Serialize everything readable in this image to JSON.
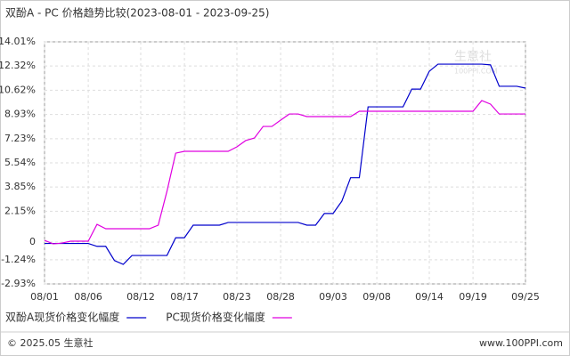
{
  "chart_data": {
    "type": "line",
    "title": "双酚A - PC 价格趋势比较(2023-08-01 - 2023-09-25)",
    "x": [
      "08/01",
      "08/02",
      "08/03",
      "08/04",
      "08/05",
      "08/06",
      "08/07",
      "08/08",
      "08/09",
      "08/10",
      "08/11",
      "08/12",
      "08/13",
      "08/14",
      "08/15",
      "08/16",
      "08/17",
      "08/18",
      "08/19",
      "08/20",
      "08/21",
      "08/22",
      "08/23",
      "08/24",
      "08/25",
      "08/26",
      "08/27",
      "08/28",
      "08/29",
      "08/30",
      "08/31",
      "09/01",
      "09/02",
      "09/03",
      "09/04",
      "09/05",
      "09/06",
      "09/07",
      "09/08",
      "09/09",
      "09/10",
      "09/11",
      "09/12",
      "09/13",
      "09/14",
      "09/15",
      "09/16",
      "09/17",
      "09/18",
      "09/19",
      "09/20",
      "09/21",
      "09/22",
      "09/23",
      "09/24",
      "09/25"
    ],
    "xticks": [
      "08/01",
      "08/06",
      "08/12",
      "08/17",
      "08/23",
      "08/28",
      "09/03",
      "09/08",
      "09/14",
      "09/19",
      "09/25"
    ],
    "series": [
      {
        "name": "双酚A现货价格变化幅度",
        "color": "#0000cc",
        "values": [
          -0.1,
          -0.1,
          -0.1,
          -0.1,
          -0.1,
          -0.1,
          -0.3,
          -0.3,
          -1.3,
          -1.56,
          -0.94,
          -0.94,
          -0.94,
          -0.94,
          -0.94,
          0.3,
          0.3,
          1.18,
          1.18,
          1.18,
          1.18,
          1.37,
          1.37,
          1.37,
          1.37,
          1.37,
          1.37,
          1.37,
          1.37,
          1.37,
          1.18,
          1.18,
          2.0,
          2.0,
          2.86,
          4.5,
          4.5,
          9.46,
          9.46,
          9.46,
          9.46,
          9.46,
          10.7,
          10.7,
          11.95,
          12.45,
          12.45,
          12.45,
          12.45,
          12.45,
          12.45,
          12.4,
          10.9,
          10.9,
          10.9,
          10.77
        ]
      },
      {
        "name": "PC现货价格变化幅度",
        "color": "#e000e0",
        "values": [
          0.12,
          -0.13,
          -0.07,
          0.06,
          0.06,
          0.06,
          1.24,
          0.93,
          0.93,
          0.93,
          0.93,
          0.93,
          0.93,
          1.18,
          3.55,
          6.22,
          6.35,
          6.35,
          6.35,
          6.35,
          6.35,
          6.35,
          6.66,
          7.1,
          7.28,
          8.09,
          8.09,
          8.53,
          8.96,
          8.96,
          8.78,
          8.78,
          8.78,
          8.78,
          8.78,
          8.78,
          9.15,
          9.15,
          9.15,
          9.15,
          9.15,
          9.15,
          9.15,
          9.15,
          9.15,
          9.15,
          9.15,
          9.15,
          9.15,
          9.15,
          9.9,
          9.65,
          8.96,
          8.96,
          8.96,
          8.96
        ]
      }
    ],
    "ylim": [
      -2.93,
      14.01
    ],
    "yticks": [
      {
        "value": 14.01,
        "label": "14.01%"
      },
      {
        "value": 12.32,
        "label": "12.32%"
      },
      {
        "value": 10.62,
        "label": "10.62%"
      },
      {
        "value": 8.93,
        "label": "8.93%"
      },
      {
        "value": 7.23,
        "label": "7.23%"
      },
      {
        "value": 5.54,
        "label": "5.54%"
      },
      {
        "value": 3.85,
        "label": "3.85%"
      },
      {
        "value": 2.15,
        "label": "2.15%"
      },
      0,
      {
        "value": -1.24,
        "label": "-1.24%"
      },
      {
        "value": -2.93,
        "label": "-2.93%"
      }
    ],
    "grid": true,
    "watermark": "生意社",
    "watermark_sub": "100PPI.COM"
  },
  "footer": {
    "copyright": "© 2025.05 生意社",
    "site": "www.100PPI.com"
  }
}
